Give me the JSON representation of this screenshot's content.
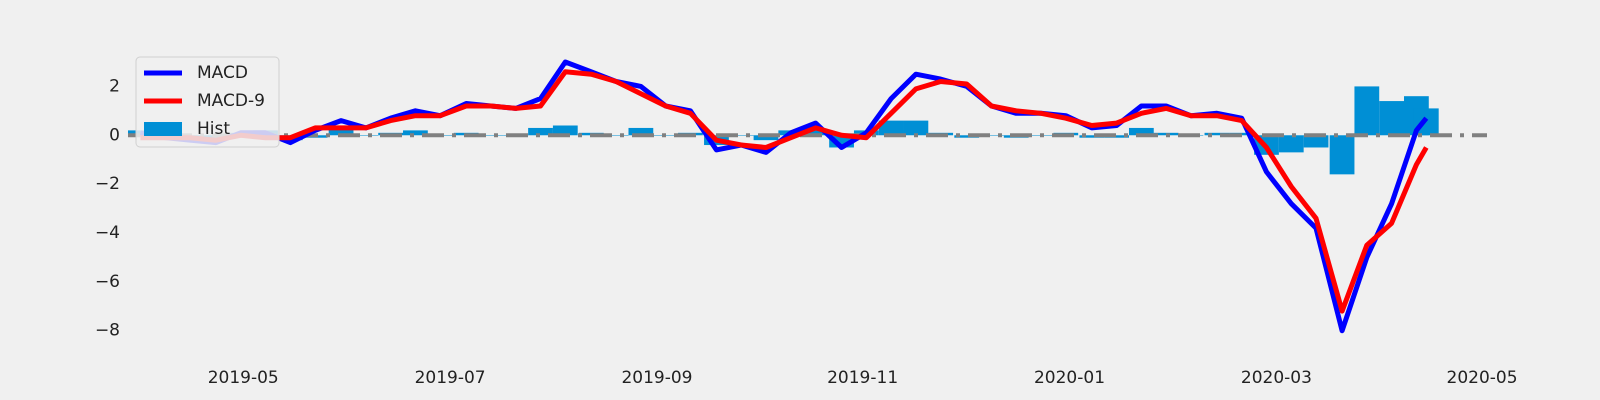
{
  "chart_data": {
    "type": "line",
    "x": [
      2019.25,
      2019.27,
      2019.29,
      2019.311,
      2019.331,
      2019.351,
      2019.371,
      2019.391,
      2019.412,
      2019.432,
      2019.452,
      2019.472,
      2019.492,
      2019.513,
      2019.533,
      2019.553,
      2019.573,
      2019.593,
      2019.614,
      2019.634,
      2019.654,
      2019.674,
      2019.694,
      2019.715,
      2019.735,
      2019.755,
      2019.775,
      2019.795,
      2019.816,
      2019.836,
      2019.856,
      2019.876,
      2019.896,
      2019.917,
      2019.937,
      2019.957,
      2019.977,
      2019.997,
      2020.018,
      2020.038,
      2020.058,
      2020.078,
      2020.098,
      2020.119,
      2020.139,
      2020.159,
      2020.179,
      2020.199,
      2020.22,
      2020.24,
      2020.26,
      2020.28,
      2020.288
    ],
    "series": [
      {
        "name": "MACD",
        "color": "#0000ff",
        "values": [
          0.1,
          -0.1,
          -0.2,
          -0.3,
          0.1,
          0.1,
          -0.3,
          0.2,
          0.6,
          0.3,
          0.7,
          1.0,
          0.8,
          1.3,
          1.2,
          1.1,
          1.5,
          3.0,
          2.6,
          2.2,
          2.0,
          1.2,
          1.0,
          -0.6,
          -0.4,
          -0.7,
          0.1,
          0.5,
          -0.5,
          0.1,
          1.5,
          2.5,
          2.3,
          2.0,
          1.2,
          0.9,
          0.9,
          0.8,
          0.3,
          0.4,
          1.2,
          1.2,
          0.8,
          0.9,
          0.7,
          -1.5,
          -2.8,
          -3.8,
          -8.0,
          -5.0,
          -2.8,
          0.2,
          0.7
        ]
      },
      {
        "name": "MACD-9",
        "color": "#ff0000",
        "values": [
          -0.1,
          -0.1,
          -0.1,
          -0.2,
          0.0,
          -0.1,
          -0.1,
          0.3,
          0.3,
          0.3,
          0.6,
          0.8,
          0.8,
          1.2,
          1.2,
          1.1,
          1.2,
          2.6,
          2.5,
          2.2,
          1.7,
          1.2,
          0.9,
          -0.2,
          -0.4,
          -0.5,
          -0.1,
          0.3,
          0.0,
          -0.1,
          0.9,
          1.9,
          2.2,
          2.1,
          1.2,
          1.0,
          0.9,
          0.7,
          0.4,
          0.5,
          0.9,
          1.1,
          0.8,
          0.8,
          0.6,
          -0.5,
          -2.1,
          -3.4,
          -7.2,
          -4.5,
          -3.6,
          -1.2,
          -0.5
        ]
      }
    ],
    "histogram": {
      "name": "Hist",
      "color": "#008fd5",
      "values": [
        0.2,
        0.0,
        -0.1,
        -0.1,
        0.1,
        0.2,
        -0.2,
        -0.1,
        0.3,
        0.0,
        0.1,
        0.2,
        0.0,
        0.1,
        0.0,
        0.0,
        0.3,
        0.4,
        0.1,
        0.0,
        0.3,
        0.0,
        0.1,
        -0.4,
        0.0,
        -0.2,
        0.2,
        0.2,
        -0.5,
        0.2,
        0.6,
        0.6,
        0.1,
        -0.1,
        0.0,
        -0.1,
        0.0,
        0.1,
        -0.1,
        -0.1,
        0.3,
        0.1,
        0.0,
        0.1,
        0.1,
        -0.8,
        -0.7,
        -0.5,
        -1.6,
        2.0,
        1.4,
        1.6,
        1.1
      ]
    },
    "reference_line": 0,
    "xlim": [
      2019.24,
      2020.337
    ],
    "ylim": [
      -9.2,
      3.9
    ],
    "xticks": [
      {
        "value": 2019.333,
        "label": "2019-05"
      },
      {
        "value": 2019.5,
        "label": "2019-07"
      },
      {
        "value": 2019.667,
        "label": "2019-09"
      },
      {
        "value": 2019.833,
        "label": "2019-11"
      },
      {
        "value": 2020.0,
        "label": "2020-01"
      },
      {
        "value": 2020.167,
        "label": "2020-03"
      },
      {
        "value": 2020.333,
        "label": "2020-05"
      }
    ],
    "yticks": [
      {
        "value": -8,
        "label": "−8"
      },
      {
        "value": -6,
        "label": "−6"
      },
      {
        "value": -4,
        "label": "−4"
      },
      {
        "value": -2,
        "label": "−2"
      },
      0,
      2
    ],
    "grid": false,
    "legend": "upper left"
  }
}
